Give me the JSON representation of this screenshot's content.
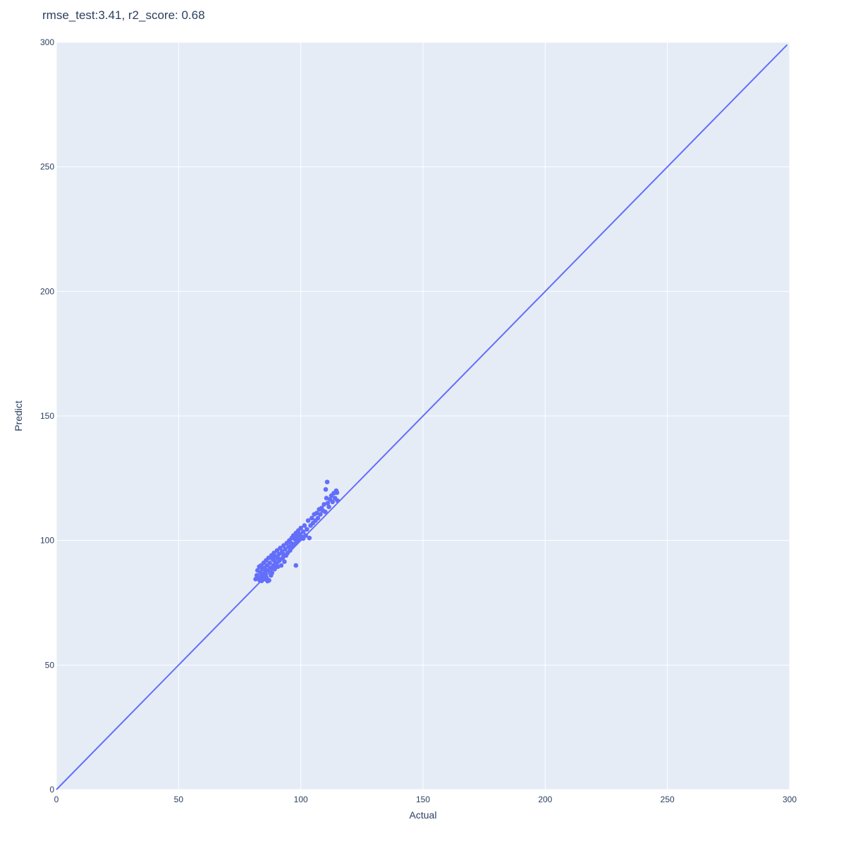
{
  "chart_data": {
    "type": "scatter",
    "title": "rmse_test:3.41, r2_score: 0.68",
    "xlabel": "Actual",
    "ylabel": "Predict",
    "xlim": [
      0,
      300
    ],
    "ylim": [
      0,
      300
    ],
    "x_ticks": [
      "0",
      "50",
      "100",
      "150",
      "200",
      "250",
      "300"
    ],
    "y_ticks": [
      "0",
      "50",
      "100",
      "150",
      "200",
      "250",
      "300"
    ],
    "grid": true,
    "series": [
      {
        "type": "scatter",
        "color": "#636efa",
        "points": [
          [
            81.5,
            84.5
          ],
          [
            82.0,
            86.0
          ],
          [
            82.3,
            88.0
          ],
          [
            82.8,
            85.2
          ],
          [
            83.0,
            89.5
          ],
          [
            83.2,
            84.0
          ],
          [
            83.5,
            87.0
          ],
          [
            83.8,
            90.0
          ],
          [
            84.0,
            85.5
          ],
          [
            84.2,
            88.5
          ],
          [
            84.5,
            86.5
          ],
          [
            84.8,
            91.0
          ],
          [
            85.0,
            84.5
          ],
          [
            85.2,
            89.0
          ],
          [
            85.5,
            87.5
          ],
          [
            85.8,
            92.0
          ],
          [
            86.0,
            85.0
          ],
          [
            86.2,
            90.0
          ],
          [
            86.5,
            88.0
          ],
          [
            86.8,
            93.0
          ],
          [
            87.0,
            84.0
          ],
          [
            87.3,
            91.0
          ],
          [
            87.6,
            89.0
          ],
          [
            88.0,
            94.0
          ],
          [
            88.2,
            87.0
          ],
          [
            88.5,
            92.5
          ],
          [
            88.8,
            90.0
          ],
          [
            89.0,
            95.0
          ],
          [
            89.3,
            88.5
          ],
          [
            89.6,
            93.5
          ],
          [
            90.0,
            91.0
          ],
          [
            90.3,
            96.0
          ],
          [
            90.6,
            89.5
          ],
          [
            91.0,
            94.5
          ],
          [
            91.3,
            92.0
          ],
          [
            91.6,
            97.0
          ],
          [
            92.0,
            90.0
          ],
          [
            92.3,
            95.5
          ],
          [
            92.6,
            93.0
          ],
          [
            93.0,
            98.0
          ],
          [
            93.3,
            91.5
          ],
          [
            93.6,
            96.5
          ],
          [
            94.0,
            94.0
          ],
          [
            94.3,
            99.0
          ],
          [
            94.6,
            95.0
          ],
          [
            95.0,
            97.5
          ],
          [
            95.3,
            100.0
          ],
          [
            95.6,
            96.0
          ],
          [
            96.0,
            99.0
          ],
          [
            96.3,
            101.0
          ],
          [
            96.6,
            97.5
          ],
          [
            97.0,
            102.0
          ],
          [
            97.3,
            98.5
          ],
          [
            97.6,
            100.5
          ],
          [
            98.0,
            103.0
          ],
          [
            98.3,
            99.5
          ],
          [
            98.6,
            101.5
          ],
          [
            99.0,
            104.0
          ],
          [
            99.3,
            100.5
          ],
          [
            99.6,
            102.5
          ],
          [
            100.0,
            105.0
          ],
          [
            100.5,
            101.5
          ],
          [
            101.0,
            103.5
          ],
          [
            101.5,
            106.0
          ],
          [
            102.0,
            102.0
          ],
          [
            102.5,
            104.5
          ],
          [
            103.0,
            108.0
          ],
          [
            103.5,
            101.0
          ],
          [
            104.0,
            106.0
          ],
          [
            104.5,
            109.0
          ],
          [
            105.0,
            107.0
          ],
          [
            105.5,
            110.5
          ],
          [
            106.0,
            108.0
          ],
          [
            106.5,
            111.0
          ],
          [
            107.0,
            109.0
          ],
          [
            107.5,
            112.5
          ],
          [
            108.0,
            110.5
          ],
          [
            108.5,
            113.0
          ],
          [
            109.0,
            112.0
          ],
          [
            109.5,
            114.5
          ],
          [
            110.0,
            111.5
          ],
          [
            110.5,
            117.0
          ],
          [
            111.0,
            115.0
          ],
          [
            111.5,
            113.5
          ],
          [
            112.0,
            116.5
          ],
          [
            112.5,
            118.0
          ],
          [
            113.0,
            115.5
          ],
          [
            113.5,
            119.0
          ],
          [
            114.0,
            117.0
          ],
          [
            114.5,
            120.0
          ],
          [
            115.0,
            116.0
          ],
          [
            110.2,
            120.5
          ],
          [
            110.8,
            123.5
          ],
          [
            114.8,
            119.2
          ],
          [
            98.0,
            90.0
          ],
          [
            101.0,
            100.8
          ],
          [
            86.4,
            83.7
          ],
          [
            84.0,
            83.8
          ],
          [
            85.6,
            86.2
          ],
          [
            83.4,
            85.0
          ],
          [
            87.8,
            86.0
          ],
          [
            89.2,
            91.8
          ],
          [
            90.8,
            92.8
          ],
          [
            92.8,
            94.6
          ]
        ]
      },
      {
        "type": "line",
        "color": "#636efa",
        "x": [
          0,
          299
        ],
        "y": [
          0,
          299
        ]
      }
    ]
  }
}
